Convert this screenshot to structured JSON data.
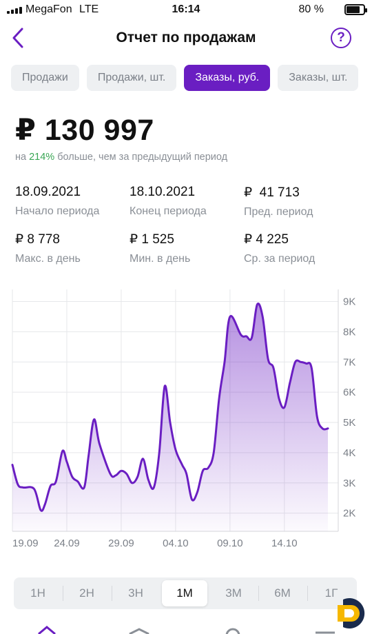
{
  "status_bar": {
    "carrier": "MegaFon",
    "network": "LTE",
    "time": "16:14",
    "battery": "80 %",
    "battery_level": 0.8
  },
  "header": {
    "title": "Отчет по продажам",
    "back_icon": "chevron-left-icon",
    "help_icon": "question-circle-icon",
    "help_glyph": "?"
  },
  "tabs": [
    {
      "label": "Продажи",
      "active": false
    },
    {
      "label": "Продажи, шт.",
      "active": false
    },
    {
      "label": "Заказы, руб.",
      "active": true
    },
    {
      "label": "Заказы, шт.",
      "active": false
    }
  ],
  "summary": {
    "total": "₽ 130 997",
    "compare_prefix": "на",
    "compare_pct": "214%",
    "compare_suffix": "больше, чем за предыдущий период"
  },
  "stats": [
    {
      "value": "18.09.2021",
      "label": "Начало периода"
    },
    {
      "value": "18.10.2021",
      "label": "Конец периода"
    },
    {
      "value": "₽  41 713",
      "label": "Пред. период"
    },
    {
      "value": "₽ 8 778",
      "label": "Макс. в день"
    },
    {
      "value": "₽ 1 525",
      "label": "Мин. в день"
    },
    {
      "value": "₽ 4 225",
      "label": "Ср. за период"
    }
  ],
  "chart_data": {
    "type": "area",
    "x_tick_labels": [
      "19.09",
      "24.09",
      "29.09",
      "04.10",
      "09.10",
      "14.10"
    ],
    "y_tick_labels": [
      "2K",
      "3K",
      "4K",
      "5K",
      "6K",
      "7K",
      "8K",
      "9K"
    ],
    "ylim": [
      1400,
      9400
    ],
    "grid": true,
    "line_color": "#6a1ec2",
    "x_day": [
      0,
      0.5,
      1,
      2,
      2.6,
      3,
      3.5,
      4,
      4.6,
      5,
      5.5,
      6,
      6.6,
      7,
      7.5,
      8,
      9,
      9.5,
      10,
      10.5,
      11,
      11.5,
      12,
      12.5,
      13,
      13.5,
      14,
      14.5,
      15,
      15.6,
      16,
      16.5,
      17,
      17.5,
      18,
      18.5,
      19,
      19.5,
      20,
      21,
      21.5,
      22,
      22.5,
      23,
      23.5,
      24,
      24.5,
      25,
      25.5,
      26,
      26.5,
      27,
      27.5,
      28,
      28.5,
      29
    ],
    "values": [
      3600,
      2950,
      2850,
      2800,
      2100,
      2300,
      2900,
      3050,
      4050,
      3700,
      3200,
      3050,
      2850,
      3900,
      5100,
      4300,
      3300,
      3250,
      3400,
      3300,
      3000,
      3200,
      3800,
      3100,
      2850,
      4000,
      6200,
      5000,
      4100,
      3600,
      3300,
      2450,
      2700,
      3400,
      3500,
      4000,
      5800,
      7000,
      8500,
      7900,
      7850,
      7800,
      8900,
      8500,
      7100,
      6800,
      5800,
      5500,
      6300,
      7000,
      7000,
      6950,
      6800,
      5200,
      4800,
      4800
    ]
  },
  "ranges": [
    {
      "label": "1Н",
      "active": false
    },
    {
      "label": "2Н",
      "active": false
    },
    {
      "label": "3Н",
      "active": false
    },
    {
      "label": "1М",
      "active": true
    },
    {
      "label": "3М",
      "active": false
    },
    {
      "label": "6М",
      "active": false
    },
    {
      "label": "1Г",
      "active": false
    }
  ],
  "colors": {
    "accent": "#6a1ec2",
    "positive": "#3aa655",
    "muted": "#8a8f96",
    "logo_orange": "#f6b800",
    "logo_navy": "#1a2b4c"
  }
}
